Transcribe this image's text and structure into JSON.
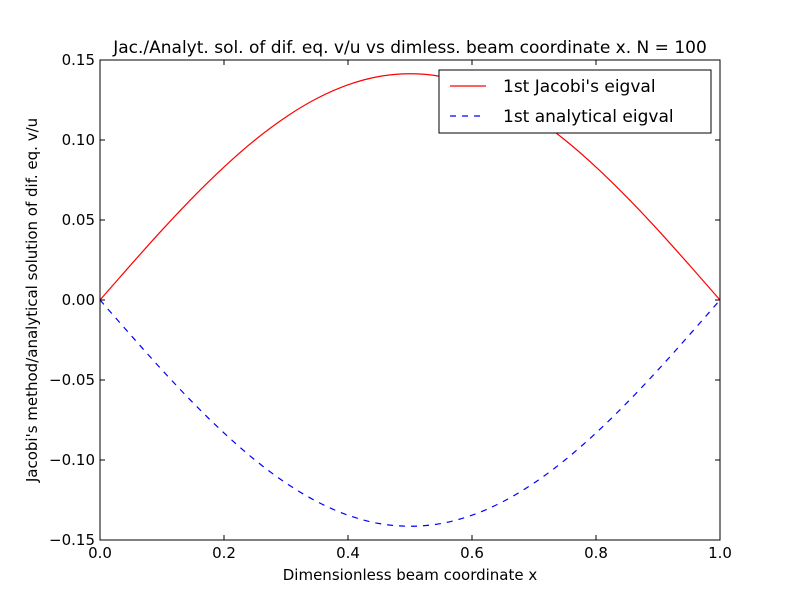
{
  "chart_data": {
    "type": "line",
    "title": "Jac./Analyt. sol. of dif. eq. v/u vs dimless. beam coordinate x. N = 100",
    "xlabel": "Dimensionless beam coordinate x",
    "ylabel": "Jacobi's method/analytical solution of dif. eq. v/u",
    "xlim": [
      0.0,
      1.0
    ],
    "ylim": [
      -0.15,
      0.15
    ],
    "xticks": [
      0.0,
      0.2,
      0.4,
      0.6,
      0.8,
      1.0
    ],
    "xtick_labels": [
      "0.0",
      "0.2",
      "0.4",
      "0.6",
      "0.8",
      "1.0"
    ],
    "yticks": [
      -0.15,
      -0.1,
      -0.05,
      0.0,
      0.05,
      0.1,
      0.15
    ],
    "ytick_labels": [
      "−0.15",
      "−0.10",
      "−0.05",
      "0.00",
      "0.05",
      "0.10",
      "0.15"
    ],
    "grid": false,
    "legend": "upper-right",
    "series": [
      {
        "name": "1st Jacobi's eigval",
        "color": "#ff0000",
        "dash": "solid",
        "x": [
          0.0,
          0.05,
          0.1,
          0.15,
          0.2,
          0.25,
          0.3,
          0.35,
          0.4,
          0.45,
          0.5,
          0.55,
          0.6,
          0.65,
          0.7,
          0.75,
          0.8,
          0.85,
          0.9,
          0.95,
          1.0
        ],
        "y": [
          0.0,
          0.0221,
          0.0437,
          0.0642,
          0.0831,
          0.1,
          0.1144,
          0.126,
          0.1345,
          0.1397,
          0.1414,
          0.1397,
          0.1345,
          0.126,
          0.1144,
          0.1,
          0.0831,
          0.0642,
          0.0437,
          0.0221,
          0.0
        ]
      },
      {
        "name": "1st analytical eigval",
        "color": "#0000ff",
        "dash": "dashed",
        "x": [
          0.0,
          0.05,
          0.1,
          0.15,
          0.2,
          0.25,
          0.3,
          0.35,
          0.4,
          0.45,
          0.5,
          0.55,
          0.6,
          0.65,
          0.7,
          0.75,
          0.8,
          0.85,
          0.9,
          0.95,
          1.0
        ],
        "y": [
          0.0,
          -0.0221,
          -0.0437,
          -0.0642,
          -0.0831,
          -0.1,
          -0.1144,
          -0.126,
          -0.1345,
          -0.1397,
          -0.1414,
          -0.1397,
          -0.1345,
          -0.126,
          -0.1144,
          -0.1,
          -0.0831,
          -0.0642,
          -0.0437,
          -0.0221,
          0.0
        ]
      }
    ]
  }
}
